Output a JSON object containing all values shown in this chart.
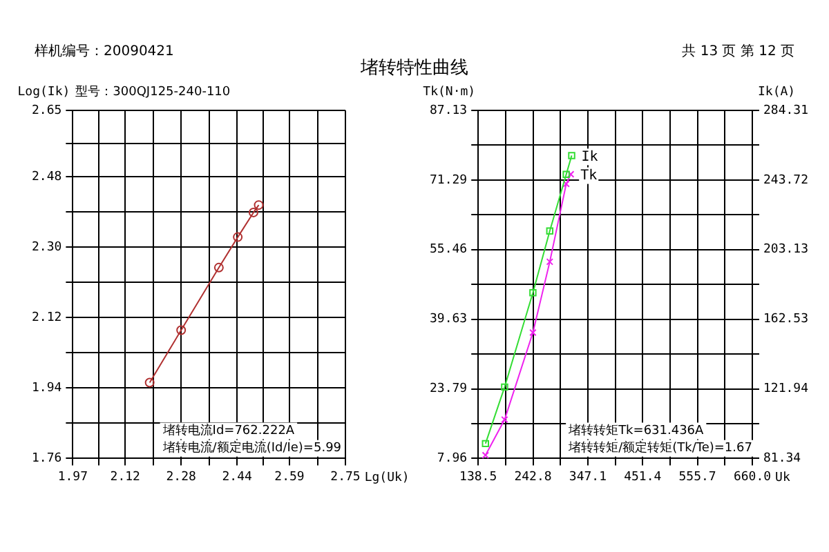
{
  "chart_data": [
    {
      "type": "line",
      "title": "堵转特性曲线",
      "subtitle": "型号：300QJ125-240-110",
      "ylabel": "Log(Ik)",
      "xlabel": "Lg(Uk)",
      "annotations": [
        "样机编号：20090421",
        "共 13 页  第 12 页",
        "堵转电流Id=762.222A",
        "堵转电流/额定电流(Id/Ie)=5.99"
      ],
      "xlim": [
        1.97,
        2.75
      ],
      "xticks": [
        1.97,
        {
          "value": 2.045,
          "label": null
        },
        2.12,
        {
          "value": 2.2,
          "label": null
        },
        2.28,
        {
          "value": 2.36,
          "label": null
        },
        2.44,
        {
          "value": 2.515,
          "label": null
        },
        2.59,
        {
          "value": 2.67,
          "label": null
        },
        2.75
      ],
      "ylim": [
        1.76,
        2.65
      ],
      "yticks": [
        1.76,
        {
          "value": 1.85,
          "label": null
        },
        1.94,
        {
          "value": 2.03,
          "label": null
        },
        2.12,
        {
          "value": 2.21,
          "label": null
        },
        {
          "value": 2.3,
          "label": "2.30"
        },
        {
          "value": 2.39,
          "label": null
        },
        2.48,
        {
          "value": 2.565,
          "label": null
        },
        2.65
      ],
      "grid": true,
      "legend": false,
      "series": [
        {
          "color": "#b03030",
          "marker": "circle",
          "x": [
            2.19,
            2.28,
            2.388,
            2.442,
            2.487,
            2.502
          ],
          "values": [
            1.954,
            2.088,
            2.248,
            2.326,
            2.389,
            2.408
          ]
        }
      ]
    },
    {
      "type": "line",
      "ylabel": "Tk(N·m)",
      "y2label": "Ik(A)",
      "xlabel": "Uk",
      "annotations": [
        "堵转转矩Tk=631.436A",
        "堵转转矩/额定转矩(Tk/Te)=1.67"
      ],
      "xlim": [
        138.5,
        660.0
      ],
      "xticks": [
        138.5,
        {
          "value": 190.65,
          "label": null
        },
        242.8,
        {
          "value": 294.95,
          "label": null
        },
        347.1,
        {
          "value": 399.25,
          "label": null
        },
        451.4,
        {
          "value": 503.55,
          "label": null
        },
        555.7,
        {
          "value": 607.85,
          "label": null
        },
        {
          "value": 660.0,
          "label": "660.0"
        }
      ],
      "ylim": [
        7.96,
        87.13
      ],
      "yticks": [
        7.96,
        {
          "value": 15.875,
          "label": null
        },
        23.79,
        {
          "value": 31.71,
          "label": null
        },
        39.63,
        {
          "value": 47.545,
          "label": null
        },
        55.46,
        {
          "value": 63.375,
          "label": null
        },
        71.29,
        {
          "value": 79.21,
          "label": null
        },
        87.13
      ],
      "y2lim": [
        81.34,
        284.31
      ],
      "y2ticks": [
        81.34,
        {
          "value": 101.64,
          "label": null
        },
        121.94,
        {
          "value": 142.235,
          "label": null
        },
        162.53,
        {
          "value": 182.83,
          "label": null
        },
        203.13,
        {
          "value": 223.425,
          "label": null
        },
        243.72,
        {
          "value": 264.015,
          "label": null
        },
        284.31
      ],
      "grid": true,
      "legend": false,
      "series": [
        {
          "name": "Ik",
          "color": "#33dd33",
          "marker": "square",
          "axis": "y2",
          "x": [
            152.4,
            188.8,
            242.6,
            274.7,
            306.0,
            316.4
          ],
          "values": [
            90,
            123,
            178,
            214,
            247,
            258
          ]
        },
        {
          "name": "Tk",
          "color": "#ee22ee",
          "marker": "cross",
          "x": [
            152.4,
            188.8,
            242.6,
            274.7,
            306.0,
            314.6
          ],
          "values": [
            8.7,
            16.8,
            36.6,
            52.7,
            70.4,
            72.6
          ]
        }
      ]
    }
  ]
}
